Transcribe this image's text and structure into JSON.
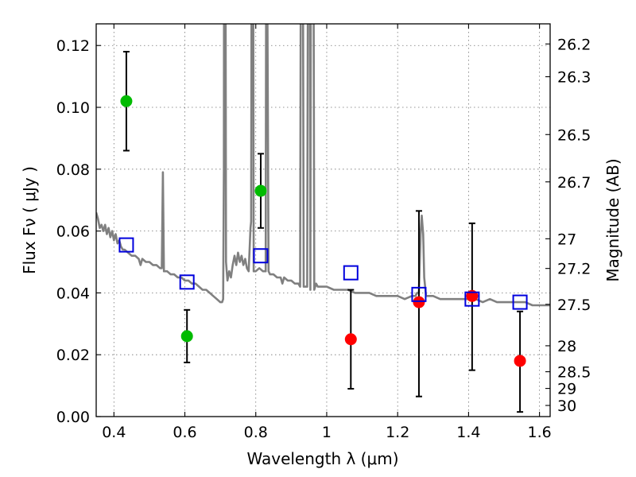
{
  "chart_data": {
    "type": "scatter",
    "title": "",
    "xlabel": "Wavelength  λ (μm)",
    "ylabel": "Flux  Fν  ( μJy )",
    "ylabel_right": "Magnitude (AB)",
    "xlim": [
      0.35,
      1.63
    ],
    "ylim": [
      0.0,
      0.127
    ],
    "grid": true,
    "xticks": [
      0.4,
      0.6,
      0.8,
      1.0,
      1.2,
      1.4,
      1.6
    ],
    "xtick_labels": [
      "0.4",
      "0.6",
      "0.8",
      "1",
      "1.2",
      "1.4",
      "1.6"
    ],
    "yticks": [
      0.0,
      0.02,
      0.04,
      0.06,
      0.08,
      0.1,
      0.12
    ],
    "ytick_labels": [
      "0.00",
      "0.02",
      "0.04",
      "0.06",
      "0.08",
      "0.10",
      "0.12"
    ],
    "right_ticks": [
      {
        "label": "26.2",
        "flux": 0.1205
      },
      {
        "label": "26.3",
        "flux": 0.1099
      },
      {
        "label": "26.5",
        "flux": 0.0912
      },
      {
        "label": "26.7",
        "flux": 0.0759
      },
      {
        "label": "27",
        "flux": 0.0575
      },
      {
        "label": "27.2",
        "flux": 0.0479
      },
      {
        "label": "27.5",
        "flux": 0.0363
      },
      {
        "label": "28",
        "flux": 0.0229
      },
      {
        "label": "28.5",
        "flux": 0.0145
      },
      {
        "label": "29",
        "flux": 0.0091
      },
      {
        "label": "30",
        "flux": 0.0036
      }
    ],
    "series": [
      {
        "kind": "line",
        "color": "#808080",
        "points": [
          [
            0.35,
            0.066
          ],
          [
            0.355,
            0.064
          ],
          [
            0.36,
            0.061
          ],
          [
            0.365,
            0.062
          ],
          [
            0.37,
            0.06
          ],
          [
            0.375,
            0.062
          ],
          [
            0.38,
            0.059
          ],
          [
            0.385,
            0.061
          ],
          [
            0.39,
            0.058
          ],
          [
            0.395,
            0.06
          ],
          [
            0.4,
            0.057
          ],
          [
            0.405,
            0.059
          ],
          [
            0.41,
            0.056
          ],
          [
            0.415,
            0.057
          ],
          [
            0.42,
            0.055
          ],
          [
            0.425,
            0.054
          ],
          [
            0.43,
            0.054
          ],
          [
            0.44,
            0.053
          ],
          [
            0.45,
            0.052
          ],
          [
            0.46,
            0.052
          ],
          [
            0.47,
            0.051
          ],
          [
            0.475,
            0.049
          ],
          [
            0.48,
            0.051
          ],
          [
            0.49,
            0.05
          ],
          [
            0.5,
            0.05
          ],
          [
            0.51,
            0.049
          ],
          [
            0.52,
            0.049
          ],
          [
            0.53,
            0.048
          ],
          [
            0.535,
            0.048
          ],
          [
            0.538,
            0.079
          ],
          [
            0.541,
            0.047
          ],
          [
            0.55,
            0.047
          ],
          [
            0.56,
            0.046
          ],
          [
            0.57,
            0.046
          ],
          [
            0.58,
            0.045
          ],
          [
            0.59,
            0.045
          ],
          [
            0.6,
            0.044
          ],
          [
            0.61,
            0.044
          ],
          [
            0.62,
            0.043
          ],
          [
            0.63,
            0.043
          ],
          [
            0.64,
            0.042
          ],
          [
            0.65,
            0.041
          ],
          [
            0.66,
            0.041
          ],
          [
            0.67,
            0.04
          ],
          [
            0.68,
            0.039
          ],
          [
            0.69,
            0.038
          ],
          [
            0.7,
            0.037
          ],
          [
            0.705,
            0.037
          ],
          [
            0.708,
            0.038
          ],
          [
            0.71,
            0.08
          ],
          [
            0.711,
            0.2
          ],
          [
            0.714,
            0.2
          ],
          [
            0.716,
            0.05
          ],
          [
            0.72,
            0.044
          ],
          [
            0.725,
            0.047
          ],
          [
            0.73,
            0.045
          ],
          [
            0.735,
            0.049
          ],
          [
            0.74,
            0.052
          ],
          [
            0.745,
            0.049
          ],
          [
            0.75,
            0.053
          ],
          [
            0.755,
            0.05
          ],
          [
            0.76,
            0.052
          ],
          [
            0.765,
            0.049
          ],
          [
            0.77,
            0.051
          ],
          [
            0.775,
            0.048
          ],
          [
            0.78,
            0.047
          ],
          [
            0.785,
            0.061
          ],
          [
            0.787,
            0.063
          ],
          [
            0.789,
            0.2
          ],
          [
            0.792,
            0.2
          ],
          [
            0.794,
            0.047
          ],
          [
            0.8,
            0.047
          ],
          [
            0.81,
            0.048
          ],
          [
            0.82,
            0.047
          ],
          [
            0.828,
            0.047
          ],
          [
            0.83,
            0.2
          ],
          [
            0.833,
            0.125
          ],
          [
            0.836,
            0.047
          ],
          [
            0.84,
            0.046
          ],
          [
            0.85,
            0.046
          ],
          [
            0.86,
            0.045
          ],
          [
            0.87,
            0.045
          ],
          [
            0.875,
            0.043
          ],
          [
            0.88,
            0.045
          ],
          [
            0.89,
            0.044
          ],
          [
            0.9,
            0.044
          ],
          [
            0.91,
            0.043
          ],
          [
            0.92,
            0.043
          ],
          [
            0.925,
            0.042
          ],
          [
            0.928,
            0.2
          ],
          [
            0.932,
            0.2
          ],
          [
            0.935,
            0.042
          ],
          [
            0.94,
            0.042
          ],
          [
            0.945,
            0.042
          ],
          [
            0.948,
            0.2
          ],
          [
            0.952,
            0.2
          ],
          [
            0.954,
            0.041
          ],
          [
            0.956,
            0.2
          ],
          [
            0.962,
            0.2
          ],
          [
            0.965,
            0.041
          ],
          [
            0.97,
            0.043
          ],
          [
            0.975,
            0.042
          ],
          [
            0.98,
            0.042
          ],
          [
            1.0,
            0.042
          ],
          [
            1.02,
            0.041
          ],
          [
            1.04,
            0.041
          ],
          [
            1.06,
            0.041
          ],
          [
            1.08,
            0.04
          ],
          [
            1.1,
            0.04
          ],
          [
            1.12,
            0.04
          ],
          [
            1.14,
            0.039
          ],
          [
            1.16,
            0.039
          ],
          [
            1.18,
            0.039
          ],
          [
            1.2,
            0.039
          ],
          [
            1.22,
            0.038
          ],
          [
            1.24,
            0.039
          ],
          [
            1.25,
            0.039
          ],
          [
            1.255,
            0.04
          ],
          [
            1.26,
            0.04
          ],
          [
            1.265,
            0.06
          ],
          [
            1.268,
            0.065
          ],
          [
            1.272,
            0.059
          ],
          [
            1.275,
            0.045
          ],
          [
            1.28,
            0.039
          ],
          [
            1.3,
            0.039
          ],
          [
            1.32,
            0.038
          ],
          [
            1.34,
            0.038
          ],
          [
            1.36,
            0.038
          ],
          [
            1.38,
            0.038
          ],
          [
            1.4,
            0.038
          ],
          [
            1.42,
            0.038
          ],
          [
            1.44,
            0.037
          ],
          [
            1.46,
            0.038
          ],
          [
            1.48,
            0.037
          ],
          [
            1.5,
            0.037
          ],
          [
            1.52,
            0.037
          ],
          [
            1.54,
            0.037
          ],
          [
            1.56,
            0.037
          ],
          [
            1.58,
            0.036
          ],
          [
            1.6,
            0.036
          ],
          [
            1.63,
            0.036
          ]
        ]
      },
      {
        "kind": "errorbar",
        "color": "#00bb00",
        "points": [
          {
            "x": 0.435,
            "y": 0.102,
            "lo": 0.086,
            "hi": 0.118
          },
          {
            "x": 0.606,
            "y": 0.026,
            "lo": 0.0175,
            "hi": 0.0345
          },
          {
            "x": 0.814,
            "y": 0.073,
            "lo": 0.061,
            "hi": 0.085
          }
        ]
      },
      {
        "kind": "errorbar",
        "color": "#ff0000",
        "points": [
          {
            "x": 1.068,
            "y": 0.025,
            "lo": 0.009,
            "hi": 0.041
          },
          {
            "x": 1.26,
            "y": 0.037,
            "lo": 0.0065,
            "hi": 0.0665
          },
          {
            "x": 1.41,
            "y": 0.039,
            "lo": 0.015,
            "hi": 0.0625
          },
          {
            "x": 1.545,
            "y": 0.018,
            "lo": 0.0015,
            "hi": 0.034
          }
        ]
      },
      {
        "kind": "open-square",
        "color": "#0000dd",
        "points": [
          {
            "x": 0.435,
            "y": 0.0555
          },
          {
            "x": 0.606,
            "y": 0.0435
          },
          {
            "x": 0.814,
            "y": 0.052
          },
          {
            "x": 1.068,
            "y": 0.0465
          },
          {
            "x": 1.26,
            "y": 0.0395
          },
          {
            "x": 1.41,
            "y": 0.038
          },
          {
            "x": 1.545,
            "y": 0.037
          }
        ]
      }
    ]
  }
}
